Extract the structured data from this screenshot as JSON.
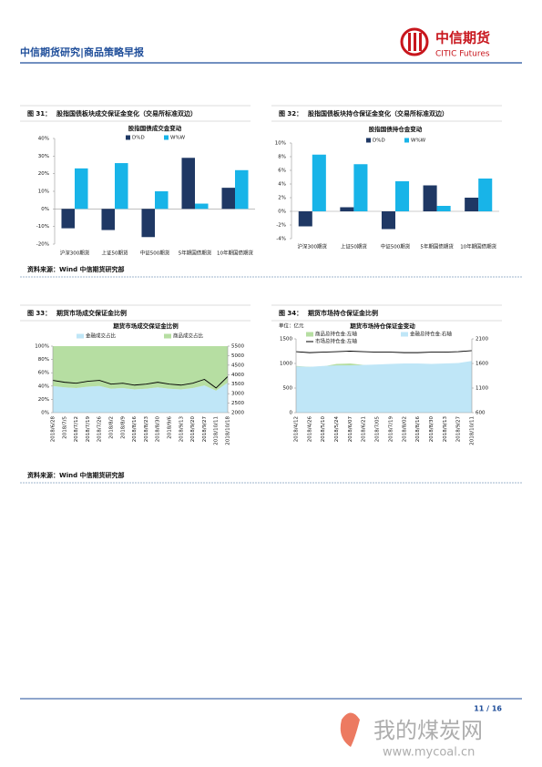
{
  "header": {
    "title": "中信期货研究|商品策略早报",
    "logo_cn": "中信期货",
    "logo_en": "CITIC Futures"
  },
  "rows": [
    {
      "figures": [
        {
          "label": "图 31：",
          "caption": "股指国债板块成交保证金变化（交易所标准双边）",
          "chart": {
            "type": "bar",
            "title": "股指国债成交金变动",
            "categories": [
              "沪深300期货",
              "上证50期货",
              "中证500期货",
              "5年期国债期货",
              "10年期国债期货"
            ],
            "series": [
              {
                "name": "D%D",
                "color": "#1f3864",
                "values": [
                  -11,
                  -12,
                  -16,
                  29,
                  12
                ]
              },
              {
                "name": "W%W",
                "color": "#18b4e8",
                "values": [
                  23,
                  26,
                  10,
                  3,
                  22
                ]
              }
            ],
            "ylim": [
              -20,
              40
            ],
            "yticks": [
              {
                "value": -20,
                "label": "-20%"
              },
              {
                "value": -10,
                "label": "-10%"
              },
              {
                "value": 0,
                "label": "0%"
              },
              {
                "value": 10,
                "label": "10%"
              },
              {
                "value": 20,
                "label": "20%"
              },
              {
                "value": 30,
                "label": "30%"
              },
              {
                "value": 40,
                "label": "40%"
              }
            ]
          }
        },
        {
          "label": "图 32：",
          "caption": "股指国债板块持仓保证金变化（交易所标准双边）",
          "chart": {
            "type": "bar",
            "title": "股指国债持仓金变动",
            "categories": [
              "沪深300期货",
              "上证50期货",
              "中证500期货",
              "5年期国债期货",
              "10年期国债期货"
            ],
            "series": [
              {
                "name": "D%D",
                "color": "#1f3864",
                "values": [
                  -2.2,
                  0.6,
                  -2.6,
                  3.8,
                  2.0
                ]
              },
              {
                "name": "W%W",
                "color": "#18b4e8",
                "values": [
                  8.3,
                  6.9,
                  4.4,
                  0.8,
                  4.8
                ]
              }
            ],
            "ylim": [
              -4,
              10
            ],
            "yticks": [
              {
                "value": -4,
                "label": "-4%"
              },
              {
                "value": -2,
                "label": "-2%"
              },
              {
                "value": 0,
                "label": "0%"
              },
              {
                "value": 2,
                "label": "2%"
              },
              {
                "value": 4,
                "label": "4%"
              },
              {
                "value": 6,
                "label": "6%"
              },
              {
                "value": 8,
                "label": "8%"
              },
              {
                "value": 10,
                "label": "10%"
              }
            ]
          }
        }
      ],
      "source": "资料来源：Wind  中信期货研究部"
    },
    {
      "figures": [
        {
          "label": "图 33：",
          "caption": "期货市场成交保证金比例",
          "chart": {
            "type": "area",
            "title": "期货市场成交保证金比例",
            "stacked": true,
            "x": [
              "2018/6/28",
              "2018/7/5",
              "2018/7/12",
              "2018/7/19",
              "2018/7/26",
              "2018/8/2",
              "2018/8/9",
              "2018/8/16",
              "2018/8/23",
              "2018/8/30",
              "2018/9/6",
              "2018/9/13",
              "2018/9/20",
              "2018/9/27",
              "2018/10/11",
              "2018/10/18"
            ],
            "series": [
              {
                "name": "金融成交占比",
                "kind": "area",
                "color": "#bfe6f7",
                "values": [
                  40,
                  38,
                  37,
                  39,
                  40,
                  36,
                  37,
                  35,
                  36,
                  38,
                  36,
                  35,
                  37,
                  41,
                  33,
                  45
                ]
              },
              {
                "name": "商品成交占比",
                "kind": "area",
                "color": "#b6dea2",
                "values": [
                  60,
                  62,
                  63,
                  61,
                  60,
                  64,
                  63,
                  65,
                  64,
                  62,
                  64,
                  65,
                  63,
                  59,
                  67,
                  55
                ]
              },
              {
                "kind": "line",
                "axis": "y2",
                "color": "#000000",
                "values": [
                  3700,
                  3600,
                  3550,
                  3650,
                  3700,
                  3500,
                  3550,
                  3450,
                  3500,
                  3600,
                  3500,
                  3450,
                  3550,
                  3750,
                  3300,
                  3900
                ]
              }
            ],
            "ylim": [
              0,
              100
            ],
            "yticks": [
              {
                "value": 0,
                "label": "0%"
              },
              {
                "value": 20,
                "label": "20%"
              },
              {
                "value": 40,
                "label": "40%"
              },
              {
                "value": 60,
                "label": "60%"
              },
              {
                "value": 80,
                "label": "80%"
              },
              {
                "value": 100,
                "label": "100%"
              }
            ],
            "y2lim": [
              2000,
              5500
            ],
            "y2ticks": [
              2000,
              2500,
              3000,
              3500,
              4000,
              4500,
              5000,
              5500
            ]
          }
        },
        {
          "label": "图 34：",
          "caption": "期货市场持仓保证金比例",
          "chart": {
            "type": "area",
            "title": "期货市场持仓保证金变动",
            "unit": "单位：亿元",
            "stacked": false,
            "x": [
              "2018/4/12",
              "2018/4/26",
              "2018/5/10",
              "2018/5/24",
              "2018/6/07",
              "2018/6/21",
              "2018/7/05",
              "2018/7/19",
              "2018/8/02",
              "2018/8/16",
              "2018/8/30",
              "2018/9/13",
              "2018/9/27",
              "2018/10/11"
            ],
            "series": [
              {
                "name": "商品总持仓金:左轴",
                "kind": "area",
                "color": "#b6dea2",
                "values": [
                  950,
                  930,
                  940,
                  990,
                  1000,
                  970,
                  950,
                  950,
                  960,
                  960,
                  950,
                  960,
                  980,
                  970
                ]
              },
              {
                "name": "金融总持仓金:右轴",
                "kind": "area",
                "axis": "y2",
                "color": "#bfe6f7",
                "values": [
                  1540,
                  1530,
                  1550,
                  1560,
                  1560,
                  1570,
                  1580,
                  1590,
                  1600,
                  1600,
                  1590,
                  1600,
                  1610,
                  1650
                ]
              },
              {
                "name": "市场总持仓金:左轴",
                "kind": "line",
                "color": "#000000",
                "values": [
                  1240,
                  1220,
                  1230,
                  1240,
                  1250,
                  1240,
                  1230,
                  1230,
                  1220,
                  1220,
                  1230,
                  1230,
                  1240,
                  1260
                ]
              }
            ],
            "ylim": [
              0,
              1500
            ],
            "yticks": [
              0,
              500,
              1000,
              1500
            ],
            "y2lim": [
              600,
              2100
            ],
            "y2ticks": [
              600,
              1100,
              1600,
              2100
            ]
          }
        }
      ],
      "source": "资料来源：Wind  中信期货研究部"
    }
  ],
  "footer": {
    "page": "11 / 16"
  },
  "watermark": {
    "text": "我的煤炭网",
    "url": "www.mycoal.cn"
  }
}
